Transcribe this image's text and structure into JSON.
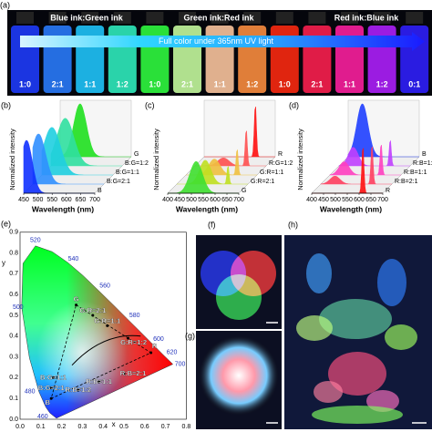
{
  "panel_a": {
    "label": "(a)",
    "groups": [
      "Blue ink:Green ink",
      "Green ink:Red ink",
      "Red ink:Blue ink"
    ],
    "banner": "Full color under 365nm UV light",
    "ratios": [
      "1:0",
      "2:1",
      "1:1",
      "1:2",
      "1:0",
      "2:1",
      "1:1",
      "1:2",
      "1:0",
      "2:1",
      "1:1",
      "1:2",
      "0:1"
    ]
  },
  "panel_b": {
    "label": "(b)",
    "y_label": "Normalized intensity",
    "x_label": "Wavelength (nm)",
    "x_ticks": [
      "450",
      "500",
      "550",
      "600",
      "650",
      "700"
    ],
    "series": [
      "G",
      "B:G=1:2",
      "B:G=1:1",
      "B:G=2:1",
      "B"
    ]
  },
  "panel_c": {
    "label": "(c)",
    "y_label": "Normalized intensity",
    "x_label": "Wavelength (nm)",
    "x_ticks": [
      "400",
      "450",
      "500",
      "550",
      "600",
      "650",
      "700"
    ],
    "series": [
      "R",
      "R:G=1:2",
      "G:R=1:1",
      "G:R=2:1",
      "G"
    ]
  },
  "panel_d": {
    "label": "(d)",
    "y_label": "Normalized intensity",
    "x_label": "Wavelength (nm)",
    "x_ticks": [
      "400",
      "450",
      "500",
      "550",
      "600",
      "650",
      "700"
    ],
    "series": [
      "B",
      "R:B=1:2",
      "R:B=1:1",
      "R:B=2:1",
      "R"
    ]
  },
  "panel_e": {
    "label": "(e)",
    "x_label": "x",
    "y_label": "y",
    "x_ticks": [
      "0.0",
      "0.1",
      "0.2",
      "0.3",
      "0.4",
      "0.5",
      "0.6",
      "0.7",
      "0.8"
    ],
    "y_ticks": [
      "0.0",
      "0.1",
      "0.2",
      "0.3",
      "0.4",
      "0.5",
      "0.6",
      "0.7",
      "0.8",
      "0.9"
    ],
    "wavelengths": [
      "460",
      "480",
      "500",
      "520",
      "540",
      "560",
      "580",
      "600",
      "620",
      "700"
    ],
    "points": [
      "G",
      "G:R=2:1",
      "G:R=1:1",
      "G:R=1:2",
      "R",
      "R:B=2:1",
      "R:B=1:1",
      "R:B=1:2",
      "B",
      "B:G=2:1",
      "B:G=1:1"
    ]
  },
  "panel_f": {
    "label": "(f)"
  },
  "panel_g": {
    "label": "(g)"
  },
  "panel_h": {
    "label": "(h)"
  }
}
